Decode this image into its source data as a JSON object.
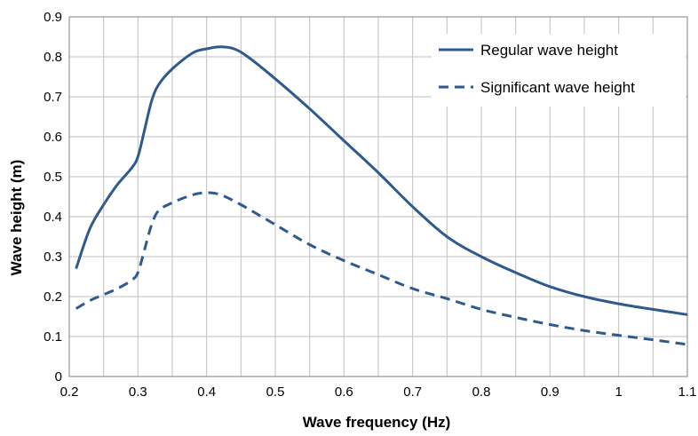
{
  "chart_data": {
    "type": "line",
    "xlabel": "Wave frequency (Hz)",
    "ylabel": "Wave height (m)",
    "xlim": [
      0.2,
      1.1
    ],
    "ylim": [
      0,
      0.9
    ],
    "x_ticks": [
      "0.2",
      "0.3",
      "0.4",
      "0.5",
      "0.6",
      "0.7",
      "0.8",
      "0.9",
      "1",
      "1.1"
    ],
    "y_ticks": [
      "0",
      "0.1",
      "0.2",
      "0.3",
      "0.4",
      "0.5",
      "0.6",
      "0.7",
      "0.8",
      "0.9"
    ],
    "grid": true,
    "legend_position": "top-right",
    "series": [
      {
        "name": "Regular wave height",
        "color": "#2e5a8e",
        "dash": "solid",
        "x": [
          0.21,
          0.23,
          0.25,
          0.27,
          0.29,
          0.3,
          0.31,
          0.32,
          0.33,
          0.35,
          0.38,
          0.4,
          0.42,
          0.44,
          0.46,
          0.5,
          0.55,
          0.6,
          0.65,
          0.7,
          0.75,
          0.8,
          0.85,
          0.9,
          0.95,
          1.0,
          1.05,
          1.1
        ],
        "y": [
          0.27,
          0.37,
          0.43,
          0.48,
          0.52,
          0.55,
          0.62,
          0.69,
          0.73,
          0.77,
          0.81,
          0.82,
          0.825,
          0.82,
          0.8,
          0.745,
          0.67,
          0.59,
          0.51,
          0.425,
          0.35,
          0.3,
          0.26,
          0.225,
          0.2,
          0.182,
          0.168,
          0.155
        ]
      },
      {
        "name": "Significant wave height",
        "color": "#2e5a8e",
        "dash": "dashed",
        "x": [
          0.21,
          0.23,
          0.25,
          0.27,
          0.29,
          0.3,
          0.31,
          0.32,
          0.33,
          0.35,
          0.38,
          0.4,
          0.42,
          0.45,
          0.5,
          0.55,
          0.6,
          0.65,
          0.7,
          0.75,
          0.8,
          0.85,
          0.9,
          0.95,
          1.0,
          1.05,
          1.1
        ],
        "y": [
          0.17,
          0.19,
          0.205,
          0.22,
          0.24,
          0.26,
          0.32,
          0.38,
          0.415,
          0.435,
          0.455,
          0.46,
          0.455,
          0.43,
          0.38,
          0.33,
          0.29,
          0.255,
          0.22,
          0.195,
          0.168,
          0.148,
          0.13,
          0.115,
          0.103,
          0.092,
          0.08
        ]
      }
    ]
  }
}
